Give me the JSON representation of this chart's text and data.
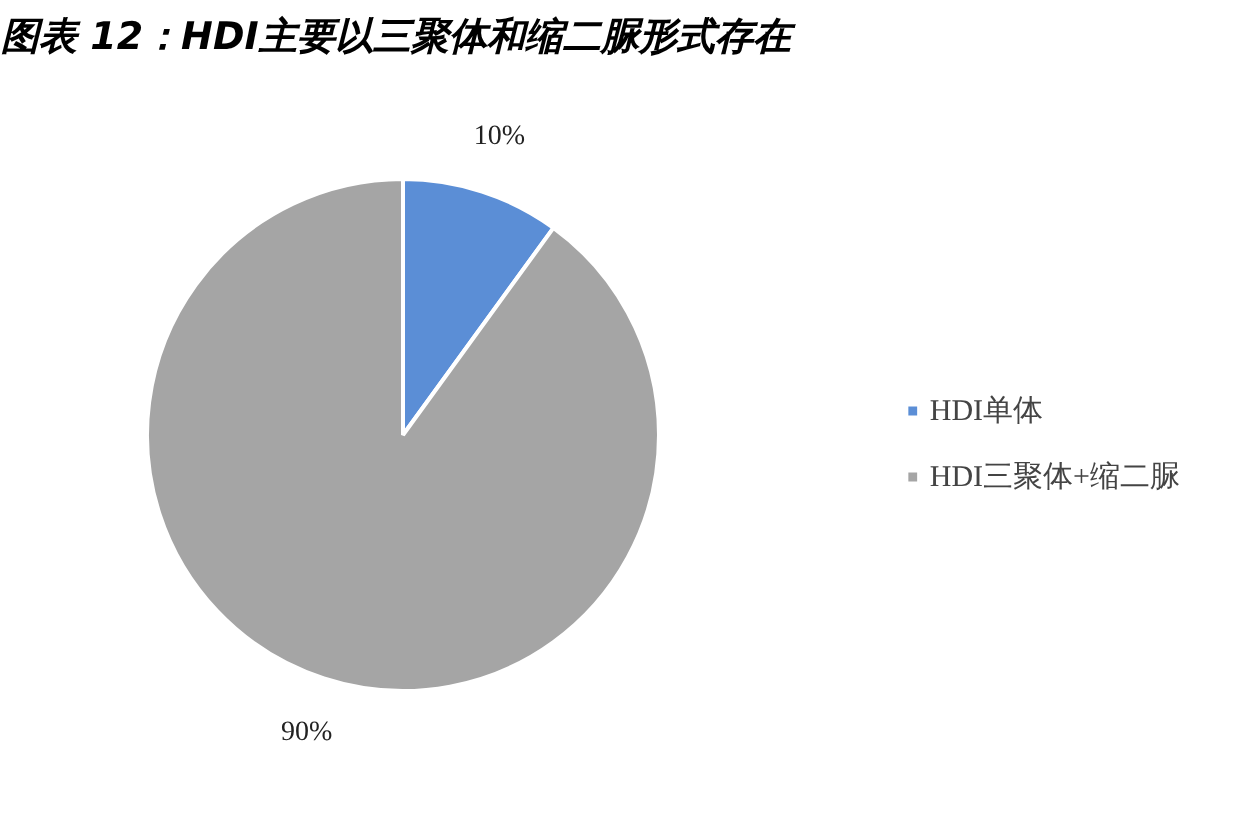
{
  "chart_data": {
    "type": "pie",
    "title": "图表 12：HDI主要以三聚体和缩二脲形式存在",
    "categories": [
      "HDI单体",
      "HDI三聚体+缩二脲"
    ],
    "values": [
      10,
      90
    ],
    "colors": [
      "#5b8ed6",
      "#a5a5a5"
    ],
    "value_labels": [
      "10%",
      "90%"
    ],
    "legend": "right"
  }
}
